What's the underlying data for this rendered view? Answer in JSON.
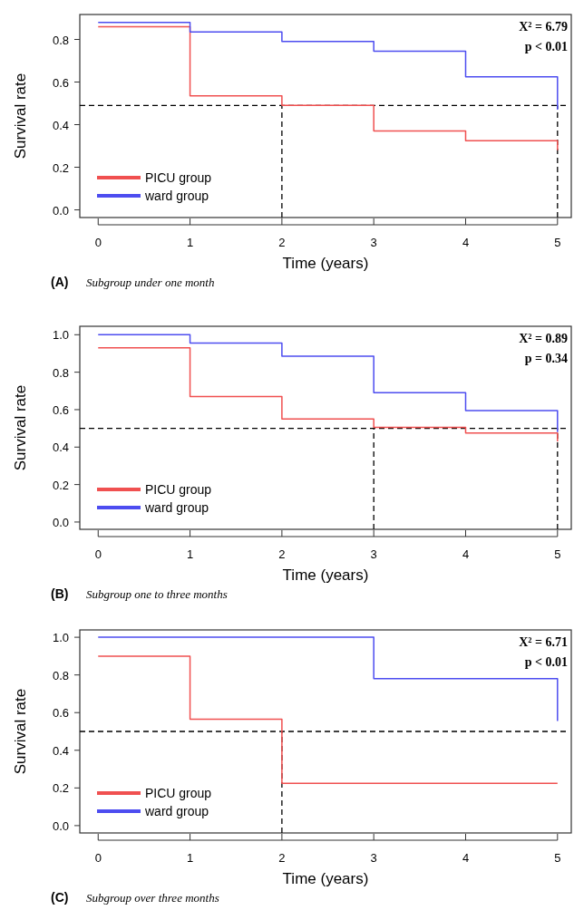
{
  "chart_data": [
    {
      "type": "step",
      "title": "(A)",
      "subtitle": "Subgroup under one month",
      "xlabel": "Time (years)",
      "ylabel": "Survival rate",
      "xlim": [
        -0.2,
        5.15
      ],
      "xticks": [
        0,
        1,
        2,
        3,
        4,
        5
      ],
      "ylim": [
        -0.036,
        0.917
      ],
      "yticks": [
        {
          "value": 0,
          "label": "0.0"
        },
        {
          "value": 0.2,
          "label": "0.2"
        },
        {
          "value": 0.4,
          "label": "0.4"
        },
        {
          "value": 0.6,
          "label": "0.6"
        },
        {
          "value": 0.8,
          "label": "0.8"
        }
      ],
      "legend": "bottom left",
      "annotations": [
        "Χ² = 6.79",
        "p < 0.01"
      ],
      "ref_lines": [
        {
          "axis": "y",
          "value": 0.49,
          "line_style": "dashed",
          "color": "#000000"
        },
        {
          "axis": "x",
          "value": 2,
          "line_style": "dashed",
          "color": "#000000"
        },
        {
          "axis": "x",
          "value": 5,
          "line_style": "dashed",
          "color": "#000000"
        }
      ],
      "series": [
        {
          "name": "PICU group",
          "color": "#f05050",
          "x": [
            0,
            1,
            2,
            3,
            4,
            5
          ],
          "values": [
            0.86,
            0.535,
            0.49,
            0.37,
            0.325,
            0.28
          ]
        },
        {
          "name": "ward group",
          "color": "#4d4df0",
          "x": [
            0,
            1,
            2,
            3,
            4,
            5
          ],
          "values": [
            0.88,
            0.835,
            0.79,
            0.745,
            0.625,
            0.47
          ]
        }
      ]
    },
    {
      "type": "step",
      "title": "(B)",
      "subtitle": "Subgroup one to three months",
      "xlabel": "Time (years)",
      "ylabel": "Survival rate",
      "xlim": [
        -0.2,
        5.15
      ],
      "xticks": [
        0,
        1,
        2,
        3,
        4,
        5
      ],
      "ylim": [
        -0.039,
        1.045
      ],
      "yticks": [
        {
          "value": 0,
          "label": "0.0"
        },
        {
          "value": 0.2,
          "label": "0.2"
        },
        {
          "value": 0.4,
          "label": "0.4"
        },
        {
          "value": 0.6,
          "label": "0.6"
        },
        {
          "value": 0.8,
          "label": "0.8"
        },
        {
          "value": 1,
          "label": "1.0"
        }
      ],
      "legend": "bottom left",
      "annotations": [
        "Χ² = 0.89",
        "p = 0.34"
      ],
      "ref_lines": [
        {
          "axis": "y",
          "value": 0.5,
          "line_style": "dashed",
          "color": "#000000"
        },
        {
          "axis": "x",
          "value": 3,
          "line_style": "dashed",
          "color": "#000000"
        },
        {
          "axis": "x",
          "value": 5,
          "line_style": "dashed",
          "color": "#000000"
        }
      ],
      "series": [
        {
          "name": "PICU group",
          "color": "#f05050",
          "x": [
            0,
            1,
            2,
            3,
            4,
            5
          ],
          "values": [
            0.93,
            0.67,
            0.55,
            0.505,
            0.475,
            0.43
          ]
        },
        {
          "name": "ward group",
          "color": "#4d4df0",
          "x": [
            0,
            1,
            2,
            3,
            4,
            5
          ],
          "values": [
            1,
            0.955,
            0.885,
            0.69,
            0.595,
            0.48
          ]
        }
      ]
    },
    {
      "type": "step",
      "title": "(C)",
      "subtitle": "Subgroup over three months",
      "xlabel": "Time (years)",
      "ylabel": "Survival rate",
      "xlim": [
        -0.2,
        5.15
      ],
      "xticks": [
        0,
        1,
        2,
        3,
        4,
        5
      ],
      "ylim": [
        -0.039,
        1.039
      ],
      "yticks": [
        {
          "value": 0,
          "label": "0.0"
        },
        {
          "value": 0.2,
          "label": "0.2"
        },
        {
          "value": 0.4,
          "label": "0.4"
        },
        {
          "value": 0.6,
          "label": "0.6"
        },
        {
          "value": 0.8,
          "label": "0.8"
        },
        {
          "value": 1,
          "label": "1.0"
        }
      ],
      "legend": "bottom left",
      "annotations": [
        "Χ² = 6.71",
        "p < 0.01"
      ],
      "ref_lines": [
        {
          "axis": "y",
          "value": 0.5,
          "line_style": "dashed",
          "color": "#000000"
        },
        {
          "axis": "x",
          "value": 2,
          "line_style": "dashed",
          "color": "#000000"
        }
      ],
      "series": [
        {
          "name": "PICU group",
          "color": "#f05050",
          "x": [
            0,
            1,
            2,
            3,
            4,
            5
          ],
          "values": [
            0.9,
            0.565,
            0.225,
            0.225,
            0.225,
            0.225
          ]
        },
        {
          "name": "ward group",
          "color": "#4d4df0",
          "x": [
            0,
            1,
            2,
            3,
            4,
            5
          ],
          "values": [
            1,
            1,
            1,
            0.78,
            0.78,
            0.555
          ]
        }
      ]
    }
  ]
}
